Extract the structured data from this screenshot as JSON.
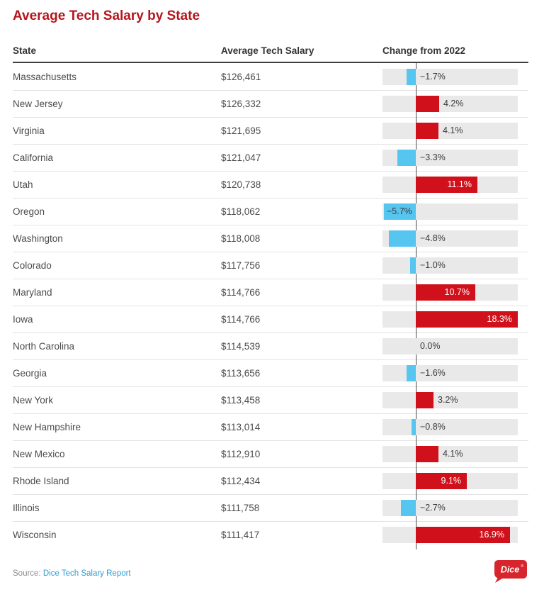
{
  "page": {
    "title": "Average Tech Salary by State",
    "source_prefix": "Source:",
    "source_link": "Dice Tech Salary Report",
    "logo_text": "Dice",
    "logo_reg": "®"
  },
  "colors": {
    "title": "#b5161d",
    "positive_bar": "#d0111b",
    "negative_bar": "#56c5f0",
    "bar_track": "#e9e9e9",
    "link": "#2e9ad2",
    "logo": "#d6252d"
  },
  "chart_data": {
    "type": "table",
    "title": "Average Tech Salary by State",
    "columns": [
      "State",
      "Average Tech Salary",
      "Change from 2022"
    ],
    "bar_column": "Change from 2022",
    "axis": {
      "min": -6.0,
      "max": 18.3,
      "zero_line": true,
      "unit": "%"
    },
    "rows": [
      {
        "state": "Massachusetts",
        "salary": "$126,461",
        "change_pct": -1.7
      },
      {
        "state": "New Jersey",
        "salary": "$126,332",
        "change_pct": 4.2
      },
      {
        "state": "Virginia",
        "salary": "$121,695",
        "change_pct": 4.1
      },
      {
        "state": "California",
        "salary": "$121,047",
        "change_pct": -3.3
      },
      {
        "state": "Utah",
        "salary": "$120,738",
        "change_pct": 11.1
      },
      {
        "state": "Oregon",
        "salary": "$118,062",
        "change_pct": -5.7
      },
      {
        "state": "Washington",
        "salary": "$118,008",
        "change_pct": -4.8
      },
      {
        "state": "Colorado",
        "salary": "$117,756",
        "change_pct": -1.0
      },
      {
        "state": "Maryland",
        "salary": "$114,766",
        "change_pct": 10.7
      },
      {
        "state": "Iowa",
        "salary": "$114,766",
        "change_pct": 18.3
      },
      {
        "state": "North Carolina",
        "salary": "$114,539",
        "change_pct": 0.0
      },
      {
        "state": "Georgia",
        "salary": "$113,656",
        "change_pct": -1.6
      },
      {
        "state": "New York",
        "salary": "$113,458",
        "change_pct": 3.2
      },
      {
        "state": "New Hampshire",
        "salary": "$113,014",
        "change_pct": -0.8
      },
      {
        "state": "New Mexico",
        "salary": "$112,910",
        "change_pct": 4.1
      },
      {
        "state": "Rhode Island",
        "salary": "$112,434",
        "change_pct": 9.1
      },
      {
        "state": "Illinois",
        "salary": "$111,758",
        "change_pct": -2.7
      },
      {
        "state": "Wisconsin",
        "salary": "$111,417",
        "change_pct": 16.9
      }
    ]
  }
}
